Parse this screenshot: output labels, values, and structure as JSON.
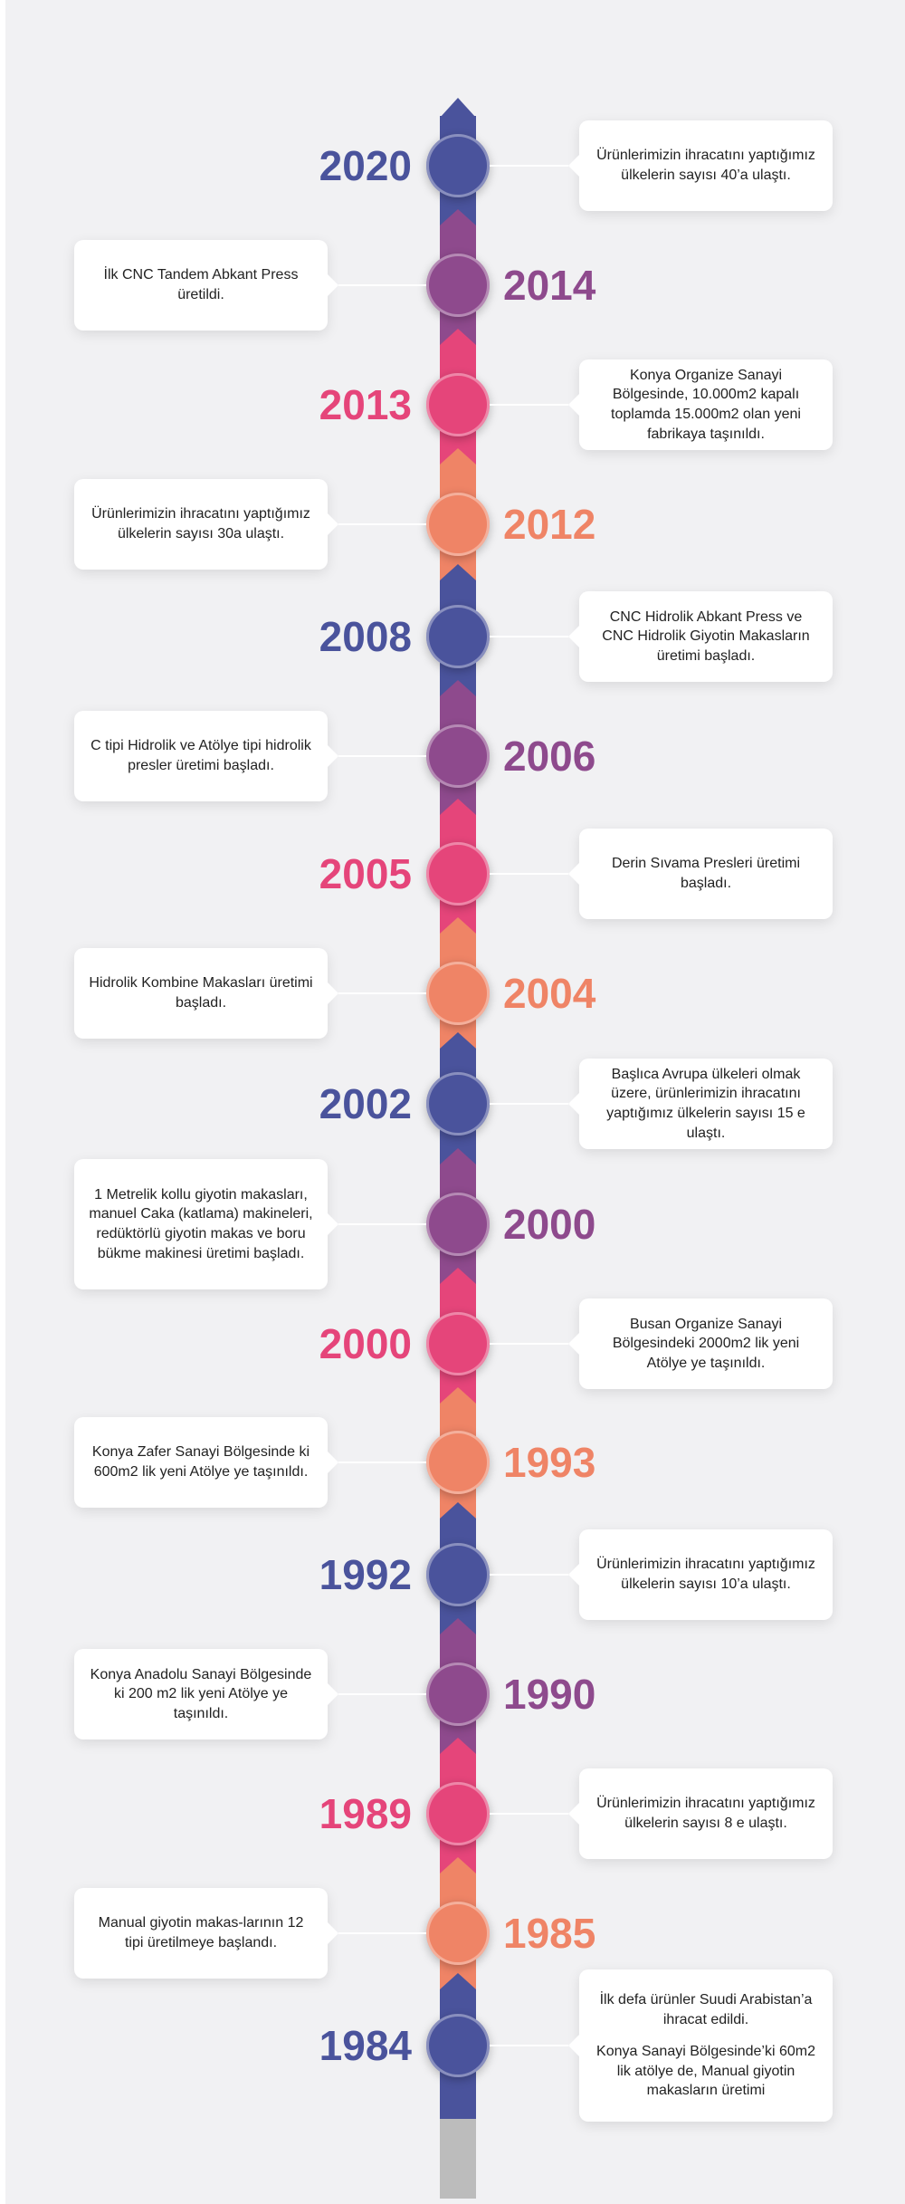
{
  "colors": {
    "blue": "#4a539c",
    "purple": "#8e4a8d",
    "pink": "#e5457a",
    "orange": "#ef8466",
    "spine_end": "#bcbcbc"
  },
  "timeline": [
    {
      "year": "2020",
      "color": "blue",
      "side": "left",
      "text": [
        "Ürünlerimizin ihracatını yaptığımız ülkelerin sayısı 40’a ulaştı."
      ]
    },
    {
      "year": "2014",
      "color": "purple",
      "side": "right",
      "text": [
        "İlk CNC Tandem Abkant Press üretildi."
      ]
    },
    {
      "year": "2013",
      "color": "pink",
      "side": "left",
      "text": [
        "Konya Organize Sanayi Bölgesinde, 10.000m2 kapalı toplamda 15.000m2 olan yeni fabrikaya taşınıldı."
      ]
    },
    {
      "year": "2012",
      "color": "orange",
      "side": "right",
      "text": [
        "Ürünlerimizin ihracatını yaptığımız ülkelerin sayısı 30a ulaştı."
      ]
    },
    {
      "year": "2008",
      "color": "blue",
      "side": "left",
      "text": [
        "CNC Hidrolik Abkant Press ve CNC Hidrolik Giyotin Makasların üretimi başladı."
      ]
    },
    {
      "year": "2006",
      "color": "purple",
      "side": "right",
      "text": [
        "C tipi Hidrolik ve Atölye tipi hidrolik presler üretimi başladı."
      ]
    },
    {
      "year": "2005",
      "color": "pink",
      "side": "left",
      "text": [
        "Derin Sıvama Presleri üretimi başladı."
      ]
    },
    {
      "year": "2004",
      "color": "orange",
      "side": "right",
      "text": [
        "Hidrolik Kombine Makasları üretimi başladı."
      ]
    },
    {
      "year": "2002",
      "color": "blue",
      "side": "left",
      "text": [
        "Başlıca Avrupa ülkeleri olmak üzere, ürünlerimizin ihracatını yaptığımız ülkelerin sayısı 15 e ulaştı."
      ]
    },
    {
      "year": "2000",
      "color": "purple",
      "side": "right",
      "text": [
        "1 Metrelik kollu giyotin makasları, manuel Caka (katlama) makineleri, redüktörlü giyotin makas ve boru bükme makinesi üretimi başladı."
      ]
    },
    {
      "year": "2000",
      "color": "pink",
      "side": "left",
      "text": [
        "Busan Organize Sanayi Bölgesindeki 2000m2 lik yeni Atölye ye taşınıldı."
      ]
    },
    {
      "year": "1993",
      "color": "orange",
      "side": "right",
      "text": [
        "Konya Zafer Sanayi Bölgesinde ki 600m2 lik yeni Atölye ye taşınıldı."
      ]
    },
    {
      "year": "1992",
      "color": "blue",
      "side": "left",
      "text": [
        "Ürünlerimizin ihracatını yaptığımız ülkelerin sayısı 10’a ulaştı."
      ]
    },
    {
      "year": "1990",
      "color": "purple",
      "side": "right",
      "text": [
        "Konya Anadolu Sanayi Bölgesinde ki 200 m2 lik yeni Atölye ye taşınıldı."
      ]
    },
    {
      "year": "1989",
      "color": "pink",
      "side": "left",
      "text": [
        "Ürünlerimizin ihracatını yaptığımız ülkelerin sayısı 8 e ulaştı."
      ]
    },
    {
      "year": "1985",
      "color": "orange",
      "side": "right",
      "text": [
        "Manual giyotin makas-larının 12 tipi üretilmeye başlandı."
      ]
    },
    {
      "year": "1984",
      "color": "blue",
      "side": "left",
      "text": [
        "İlk defa ürünler Suudi Arabistan’a ihracat edildi.",
        "Konya Sanayi Bölgesinde’ki 60m2 lik atölye de, Manual giyotin makasların üretimi"
      ]
    }
  ]
}
